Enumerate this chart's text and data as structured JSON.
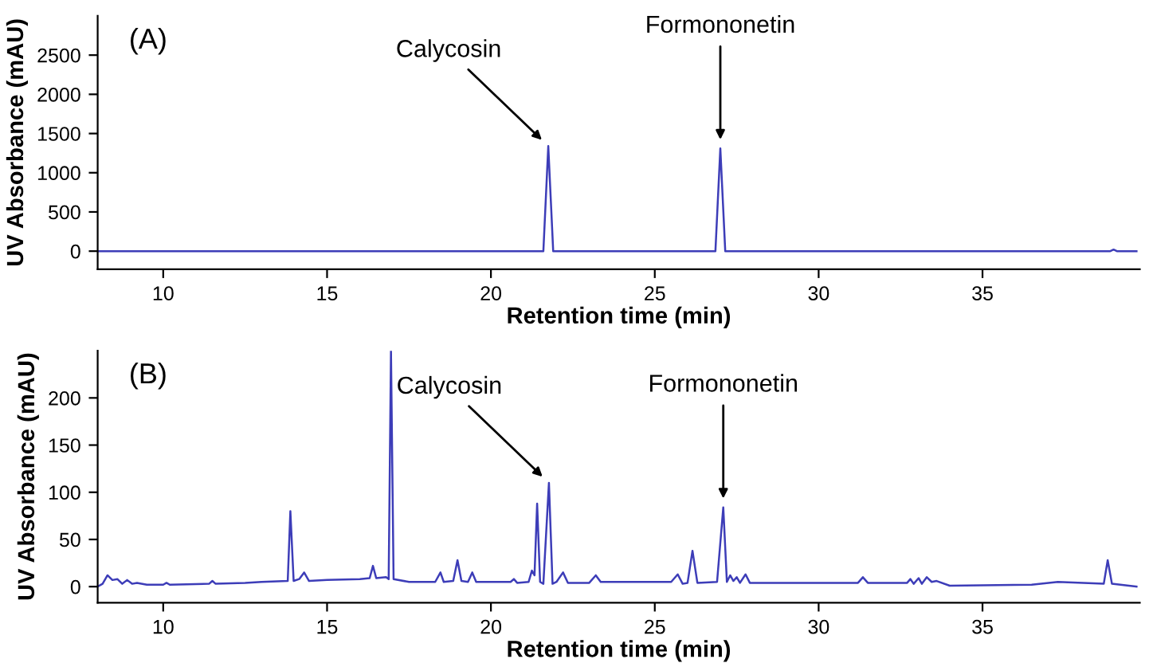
{
  "chart_data": [
    {
      "type": "line",
      "title": "(A)",
      "xlabel": "Retention time (min)",
      "ylabel": "UV Absorbance (mAU)",
      "xlim": [
        8,
        39.8
      ],
      "xticks": [
        10,
        15,
        20,
        25,
        30,
        35
      ],
      "ylim": [
        -230,
        3000
      ],
      "yticks": [
        0,
        500,
        1000,
        1500,
        2000,
        2500
      ],
      "grid": false,
      "legend": false,
      "series": [
        {
          "color": "#3d3db8",
          "x": [
            8,
            21.6,
            21.75,
            21.9,
            26.85,
            27.0,
            27.15,
            38.9,
            39.0,
            39.1,
            39.7
          ],
          "values": [
            0,
            0,
            1340,
            0,
            0,
            1310,
            0,
            0,
            20,
            0,
            0
          ]
        }
      ],
      "annotations": [
        {
          "text": "Calycosin",
          "x": 21.75,
          "y": 1340
        },
        {
          "text": "Formononetin",
          "x": 27.0,
          "y": 1310
        }
      ]
    },
    {
      "type": "line",
      "title": "(B)",
      "xlabel": "Retention time (min)",
      "ylabel": "UV Absorbance (mAU)",
      "xlim": [
        8,
        39.8
      ],
      "xticks": [
        10,
        15,
        20,
        25,
        30,
        35
      ],
      "ylim": [
        -17,
        250
      ],
      "yticks": [
        0,
        50,
        100,
        150,
        200
      ],
      "grid": false,
      "legend": false,
      "series": [
        {
          "color": "#3d3db8",
          "x": [
            8.0,
            8.15,
            8.3,
            8.45,
            8.6,
            8.75,
            8.9,
            9.05,
            9.2,
            9.5,
            10.0,
            10.1,
            10.2,
            11.4,
            11.5,
            11.6,
            12.5,
            13.0,
            13.8,
            13.88,
            13.98,
            14.15,
            14.3,
            14.45,
            15.0,
            16.0,
            16.3,
            16.4,
            16.5,
            16.8,
            16.88,
            16.95,
            17.03,
            17.5,
            18.3,
            18.46,
            18.56,
            18.85,
            18.98,
            19.1,
            19.3,
            19.43,
            19.55,
            20.6,
            20.7,
            20.8,
            21.15,
            21.25,
            21.33,
            21.41,
            21.5,
            21.6,
            21.77,
            21.88,
            22.0,
            22.2,
            22.35,
            23.0,
            23.2,
            23.35,
            25.5,
            25.7,
            25.85,
            26.0,
            26.15,
            26.3,
            26.9,
            27.09,
            27.2,
            27.3,
            27.4,
            27.5,
            27.6,
            27.77,
            27.9,
            31.2,
            31.35,
            31.5,
            32.7,
            32.8,
            32.9,
            33.05,
            33.15,
            33.3,
            33.45,
            33.6,
            34.0,
            36.5,
            37.3,
            38.7,
            38.82,
            38.95,
            39.7
          ],
          "values": [
            0,
            3,
            12,
            7,
            8,
            3,
            7,
            3,
            4,
            2,
            2,
            4,
            2,
            3,
            6,
            3,
            4,
            5,
            6,
            80,
            6,
            8,
            15,
            6,
            7,
            8,
            9,
            22,
            9,
            10,
            8,
            250,
            8,
            5,
            5,
            15,
            5,
            6,
            28,
            6,
            5,
            15,
            5,
            5,
            8,
            4,
            5,
            17,
            12,
            88,
            5,
            3,
            110,
            3,
            5,
            15,
            4,
            4,
            12,
            5,
            5,
            13,
            3,
            4,
            38,
            4,
            5,
            84,
            5,
            12,
            6,
            10,
            4,
            13,
            4,
            4,
            10,
            4,
            4,
            8,
            3,
            9,
            3,
            10,
            5,
            6,
            1,
            2,
            5,
            3,
            28,
            3,
            0
          ]
        }
      ],
      "annotations": [
        {
          "text": "Calycosin",
          "x": 21.77,
          "y": 110
        },
        {
          "text": "Formononetin",
          "x": 27.09,
          "y": 84
        }
      ]
    }
  ]
}
